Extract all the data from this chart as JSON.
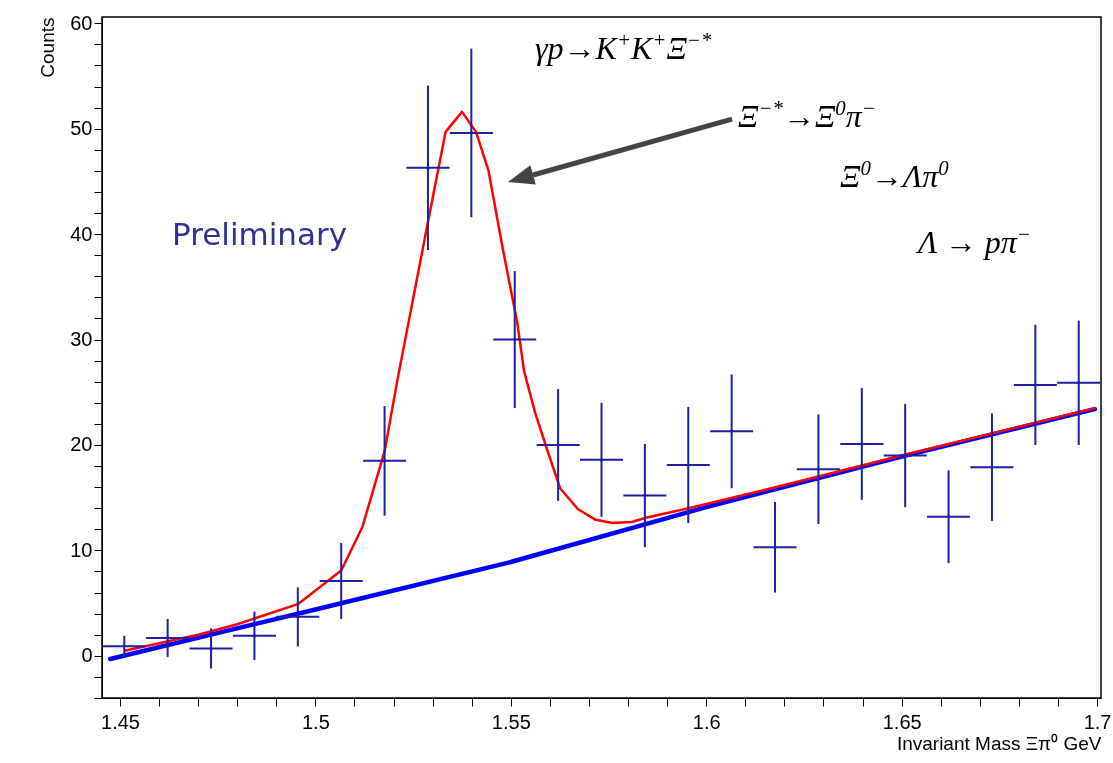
{
  "chart_data": {
    "type": "scatter",
    "xlabel": "Invariant Mass Ξπ⁰ GeV",
    "ylabel": "Counts",
    "xlim": [
      1.4454,
      1.701
    ],
    "ylim": [
      -4,
      60.6
    ],
    "xticks": [
      1.45,
      {
        "value": 1.46,
        "label": null
      },
      {
        "value": 1.47,
        "label": null
      },
      {
        "value": 1.48,
        "label": null
      },
      {
        "value": 1.49,
        "label": null
      },
      1.5,
      {
        "value": 1.51,
        "label": null
      },
      {
        "value": 1.52,
        "label": null
      },
      {
        "value": 1.53,
        "label": null
      },
      {
        "value": 1.54,
        "label": null
      },
      1.55,
      {
        "value": 1.56,
        "label": null
      },
      {
        "value": 1.57,
        "label": null
      },
      {
        "value": 1.58,
        "label": null
      },
      {
        "value": 1.59,
        "label": null
      },
      1.6,
      {
        "value": 1.61,
        "label": null
      },
      {
        "value": 1.62,
        "label": null
      },
      {
        "value": 1.63,
        "label": null
      },
      {
        "value": 1.64,
        "label": null
      },
      1.65,
      {
        "value": 1.66,
        "label": null
      },
      {
        "value": 1.67,
        "label": null
      },
      {
        "value": 1.68,
        "label": null
      },
      {
        "value": 1.69,
        "label": null
      },
      1.7
    ],
    "yticks": [
      {
        "value": -4,
        "label": null
      },
      {
        "value": -2,
        "label": null
      },
      0,
      {
        "value": 2,
        "label": null
      },
      {
        "value": 4,
        "label": null
      },
      {
        "value": 6,
        "label": null
      },
      {
        "value": 8,
        "label": null
      },
      10,
      {
        "value": 12,
        "label": null
      },
      {
        "value": 14,
        "label": null
      },
      {
        "value": 16,
        "label": null
      },
      {
        "value": 18,
        "label": null
      },
      20,
      {
        "value": 22,
        "label": null
      },
      {
        "value": 24,
        "label": null
      },
      {
        "value": 26,
        "label": null
      },
      {
        "value": 28,
        "label": null
      },
      30,
      {
        "value": 32,
        "label": null
      },
      {
        "value": 34,
        "label": null
      },
      {
        "value": 36,
        "label": null
      },
      {
        "value": 38,
        "label": null
      },
      40,
      {
        "value": 42,
        "label": null
      },
      {
        "value": 44,
        "label": null
      },
      {
        "value": 46,
        "label": null
      },
      {
        "value": 48,
        "label": null
      },
      50,
      {
        "value": 52,
        "label": null
      },
      {
        "value": 54,
        "label": null
      },
      {
        "value": 56,
        "label": null
      },
      {
        "value": 58,
        "label": null
      },
      60
    ],
    "x": [
      1.4511,
      1.4622,
      1.4733,
      1.4844,
      1.4955,
      1.5066,
      1.5177,
      1.5288,
      1.5399,
      1.551,
      1.5621,
      1.5732,
      1.5843,
      1.5954,
      1.6065,
      1.6176,
      1.6287,
      1.6398,
      1.6509,
      1.662,
      1.6731,
      1.6842,
      1.6953
    ],
    "series": [
      {
        "type": "line",
        "color": "#0000ff",
        "x": [
          1.4475,
          1.5,
          1.55,
          1.6,
          1.65,
          1.6994
        ],
        "values": [
          -0.3,
          4.4,
          8.9,
          14.1,
          18.9,
          23.4
        ]
      },
      {
        "type": "line",
        "color": "#ff0000",
        "x": [
          1.4515,
          1.47,
          1.48,
          1.4955,
          1.5066,
          1.512,
          1.5177,
          1.521,
          1.5283,
          1.5333,
          1.5375,
          1.5411,
          1.5443,
          1.548,
          1.5516,
          1.5534,
          1.5562,
          1.5589,
          1.5626,
          1.5672,
          1.5717,
          1.576,
          1.581,
          1.5845,
          1.5955,
          1.62,
          1.65,
          1.6994
        ],
        "values": [
          0.5,
          2.0,
          3.0,
          4.9,
          8.1,
          12.2,
          19.4,
          26.2,
          40.2,
          49.7,
          51.6,
          49.7,
          46.0,
          38.5,
          31.7,
          27.0,
          23.1,
          20.0,
          15.9,
          13.9,
          12.9,
          12.6,
          12.7,
          13.1,
          14.0,
          16.2,
          19.0,
          23.5
        ]
      },
      {
        "color": "#1f1fa3",
        "marker": "cross",
        "values": [
          0.9,
          1.7,
          0.7,
          1.9,
          3.7,
          7.1,
          18.5,
          46.3,
          49.6,
          30.0,
          20.0,
          18.6,
          15.2,
          18.1,
          21.3,
          10.3,
          17.7,
          20.1,
          19.0,
          13.2,
          17.9,
          25.7,
          25.9
        ],
        "errors": [
          1.0,
          1.8,
          1.9,
          2.3,
          2.8,
          3.6,
          5.2,
          7.8,
          8.0,
          6.5,
          5.3,
          5.4,
          4.9,
          5.5,
          5.4,
          4.3,
          5.2,
          5.3,
          4.9,
          4.4,
          5.1,
          5.7,
          5.9
        ],
        "xerrors": [
          0.0055,
          0.0055,
          0.0055,
          0.0055,
          0.0055,
          0.0055,
          0.0055,
          0.0055,
          0.0055,
          0.0055,
          0.0055,
          0.0055,
          0.0055,
          0.0055,
          0.0055,
          0.0055,
          0.0055,
          0.0055,
          0.0055,
          0.0055,
          0.0055,
          0.0055,
          0.0055
        ]
      }
    ],
    "annotations": [
      "γp→K$^{+}$K$^{+}$Ξ$^{−*}$",
      "Ξ$^{−*}$→Ξ$^{0}$π$^{−}$",
      "Ξ$^{0}$→Λπ$^{0}$",
      "Λ → pπ$^{−}$",
      "Preliminary"
    ]
  }
}
